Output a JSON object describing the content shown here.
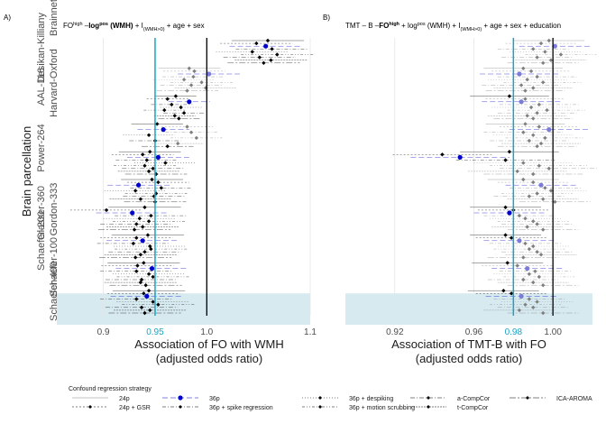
{
  "panels": [
    {
      "tag": "A)",
      "title": {
        "main": "FO",
        "sup": "high",
        "parts": [
          " –",
          "log",
          "pos",
          " (WMH)",
          " + I",
          "(WMH>0)",
          " + age + sex"
        ]
      },
      "xlabel": [
        "Association of FO with WMH",
        "(adjusted odds ratio)"
      ]
    },
    {
      "tag": "B)",
      "title": {
        "main": "TMT – B –",
        "parts": [
          "FO",
          "high",
          " + log",
          "pos",
          " (WMH) + I",
          "(WMH>0)",
          " + age + sex + education"
        ]
      },
      "xlabel": [
        "Association of TMT-B with FO",
        "(adjusted odds ratio)"
      ]
    }
  ],
  "ylabel": "Brain parcellation",
  "parcellations": [
    "Brainnetome",
    "Desikan-Killiany",
    "AAL-116",
    "Harvard-Oxford",
    "Power-264",
    "Gordon-333",
    "Glasser-360",
    "Schaefer-100",
    "Schaefer-200",
    "Schaefer-400"
  ],
  "legend": {
    "title": "Confound regression strategy",
    "items": [
      "24p",
      "24p + GSR",
      "36p",
      "36p + spike regression",
      "36p + despiking",
      "36p + motion scrubbing",
      "a-CompCor",
      "t-CompCor",
      "ICA-AROMA"
    ]
  },
  "colors": {
    "highlight": "#1ba3c6",
    "shade": "#d6eaf0",
    "reference": "#000000",
    "significant": "#000000",
    "nonsignificant": "#7f7f7f",
    "strategy_36p": "#0000cc"
  },
  "chart_data": [
    {
      "type": "forest",
      "panel": "A",
      "xlim": [
        0.855,
        1.1
      ],
      "xticks": [
        0.9,
        0.95,
        1.0,
        1.1
      ],
      "xtick_labels": [
        "0.9",
        "0.95",
        "1.0",
        "1.1"
      ],
      "highlight_x": 0.95,
      "reference_x": 1.0,
      "shaded_groups": [
        "Schaefer-400"
      ],
      "grid": true,
      "groups": [
        {
          "name": "Brainnetome",
          "or": [
            1.059,
            1.048,
            1.057,
            1.063,
            1.044,
            1.068,
            1.051,
            1.062,
            1.055
          ],
          "sig": [
            1,
            1,
            1,
            1,
            1,
            1,
            1,
            1,
            1
          ],
          "ci": 0.035
        },
        {
          "name": "Desikan-Killiany",
          "or": [
            0.983,
            0.988,
            1.002,
            0.987,
            0.978,
            0.995,
            0.985,
            0.999,
            0.981
          ],
          "sig": [
            0,
            0,
            0,
            0,
            0,
            0,
            0,
            0,
            0
          ],
          "ci": 0.03
        },
        {
          "name": "AAL-116",
          "or": [
            0.97,
            0.962,
            0.983,
            0.966,
            0.975,
            0.959,
            0.978,
            0.969,
            0.973
          ],
          "sig": [
            1,
            1,
            1,
            1,
            1,
            1,
            1,
            1,
            1
          ],
          "ci": 0.02
        },
        {
          "name": "Harvard-Oxford",
          "or": [
            0.952,
            0.981,
            0.958,
            0.985,
            0.944,
            0.99,
            0.95,
            0.972,
            0.962
          ],
          "sig": [
            1,
            0,
            1,
            0,
            1,
            0,
            1,
            0,
            1
          ],
          "ci": 0.025
        },
        {
          "name": "Power-264",
          "or": [
            0.945,
            0.938,
            0.953,
            0.942,
            0.96,
            0.94,
            0.948,
            0.944,
            0.951
          ],
          "sig": [
            1,
            1,
            1,
            1,
            1,
            1,
            1,
            1,
            1
          ],
          "ci": 0.03
        },
        {
          "name": "Gordon-333",
          "or": [
            0.947,
            0.953,
            0.934,
            0.956,
            0.931,
            0.951,
            0.949,
            0.936,
            0.95
          ],
          "sig": [
            1,
            1,
            1,
            1,
            1,
            1,
            1,
            1,
            1
          ],
          "ci": 0.03
        },
        {
          "name": "Glasser-360",
          "or": [
            0.94,
            0.903,
            0.928,
            0.946,
            0.935,
            0.944,
            0.932,
            0.938,
            0.93
          ],
          "sig": [
            1,
            1,
            1,
            1,
            1,
            1,
            1,
            1,
            1
          ],
          "ci": 0.035
        },
        {
          "name": "Schaefer-100",
          "or": [
            0.943,
            0.932,
            0.938,
            0.929,
            0.945,
            0.946,
            0.94,
            0.936,
            0.931
          ],
          "sig": [
            1,
            1,
            1,
            1,
            1,
            1,
            1,
            1,
            1
          ],
          "ci": 0.035
        },
        {
          "name": "Schaefer-200",
          "or": [
            0.939,
            0.933,
            0.947,
            0.932,
            0.944,
            0.948,
            0.937,
            0.936,
            0.941
          ],
          "sig": [
            1,
            1,
            1,
            1,
            1,
            1,
            1,
            1,
            1
          ],
          "ci": 0.035
        },
        {
          "name": "Schaefer-400",
          "or": [
            0.944,
            0.939,
            0.942,
            0.932,
            0.948,
            0.953,
            0.937,
            0.945,
            0.94
          ],
          "sig": [
            1,
            1,
            1,
            1,
            1,
            1,
            1,
            1,
            1
          ],
          "ci": 0.035
        }
      ]
    },
    {
      "type": "forest",
      "panel": "B",
      "xlim": [
        0.895,
        1.02
      ],
      "xticks": [
        0.92,
        0.96,
        0.98,
        1.0
      ],
      "xtick_labels": [
        "0.92",
        "0.96",
        "0.98",
        "1.00"
      ],
      "highlight_x": 0.98,
      "reference_x": 1.0,
      "shaded_groups": [
        "Schaefer-400"
      ],
      "grid": true,
      "groups": [
        {
          "name": "Brainnetome",
          "or": [
            0.998,
            0.994,
            1.001,
            0.99,
            0.996,
            1.004,
            0.992,
            0.999,
            0.995
          ],
          "sig": [
            0,
            0,
            0,
            0,
            0,
            0,
            0,
            0,
            0
          ],
          "ci": 0.018
        },
        {
          "name": "Desikan-Killiany",
          "or": [
            0.985,
            0.989,
            0.983,
            0.992,
            0.987,
            0.995,
            0.984,
            0.99,
            0.986
          ],
          "sig": [
            0,
            0,
            0,
            0,
            0,
            0,
            0,
            0,
            0
          ],
          "ci": 0.02
        },
        {
          "name": "AAL-116",
          "or": [
            0.978,
            0.986,
            0.984,
            0.993,
            0.989,
            0.997,
            0.992,
            0.987,
            0.99
          ],
          "sig": [
            1,
            0,
            0,
            0,
            0,
            0,
            0,
            0,
            0
          ],
          "ci": 0.02
        },
        {
          "name": "Harvard-Oxford",
          "or": [
            0.986,
            0.993,
            0.998,
            0.985,
            0.99,
            0.996,
            0.988,
            0.994,
            0.992
          ],
          "sig": [
            0,
            0,
            0,
            0,
            0,
            0,
            0,
            0,
            0
          ],
          "ci": 0.02
        },
        {
          "name": "Power-264",
          "or": [
            0.978,
            0.944,
            0.953,
            0.976,
            0.985,
            0.993,
            0.998,
            0.982,
            0.99
          ],
          "sig": [
            1,
            1,
            1,
            1,
            0,
            0,
            0,
            0,
            0
          ],
          "ci": 0.025
        },
        {
          "name": "Gordon-333",
          "or": [
            0.985,
            0.99,
            0.994,
            0.996,
            0.999,
            0.992,
            0.988,
            0.995,
            1.001
          ],
          "sig": [
            0,
            0,
            0,
            0,
            0,
            0,
            0,
            0,
            0
          ],
          "ci": 0.018
        },
        {
          "name": "Glasser-360",
          "or": [
            0.976,
            0.98,
            0.978,
            0.983,
            0.986,
            0.99,
            0.992,
            0.987,
            0.995
          ],
          "sig": [
            1,
            1,
            1,
            0,
            0,
            0,
            0,
            0,
            0
          ],
          "ci": 0.018
        },
        {
          "name": "Schaefer-100",
          "or": [
            0.976,
            0.979,
            0.983,
            0.986,
            0.99,
            0.988,
            0.992,
            0.994,
            0.985
          ],
          "sig": [
            1,
            1,
            0,
            0,
            0,
            0,
            0,
            0,
            0
          ],
          "ci": 0.018
        },
        {
          "name": "Schaefer-200",
          "or": [
            0.977,
            0.982,
            0.987,
            0.991,
            0.988,
            0.993,
            0.985,
            0.99,
            0.995
          ],
          "sig": [
            1,
            0,
            0,
            0,
            0,
            0,
            0,
            0,
            0
          ],
          "ci": 0.018
        },
        {
          "name": "Schaefer-400",
          "or": [
            0.975,
            0.979,
            0.984,
            0.988,
            0.992,
            0.986,
            0.99,
            0.983,
            0.995
          ],
          "sig": [
            1,
            1,
            0,
            0,
            0,
            0,
            0,
            0,
            0
          ],
          "ci": 0.018
        }
      ]
    }
  ]
}
